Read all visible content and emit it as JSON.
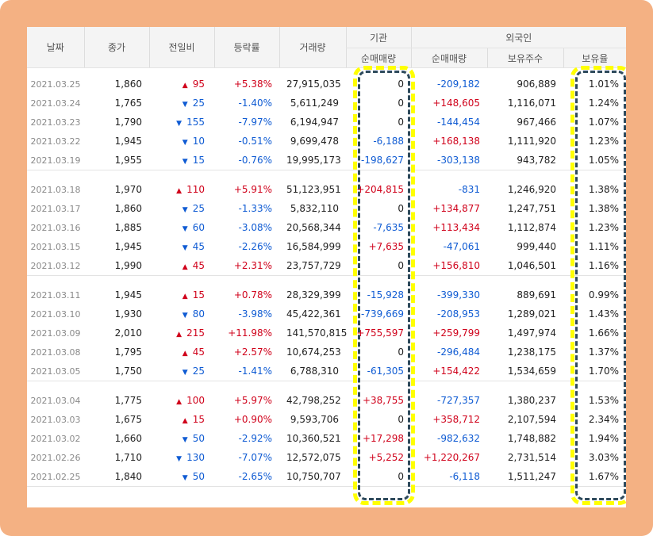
{
  "colors": {
    "frame": "#f4b183",
    "up": "#d0021b",
    "down": "#0f5bd3",
    "highlight": "#ffff00",
    "highlight_dash": "#2e4a5c"
  },
  "headers": {
    "date": "날짜",
    "close": "종가",
    "change": "전일비",
    "rate": "등락률",
    "volume": "거래량",
    "institution": "기관",
    "foreign": "외국인",
    "inst_net": "순매매량",
    "foreign_net": "순매매량",
    "holdings": "보유주수",
    "holding_ratio": "보유율"
  },
  "groups": [
    [
      {
        "date": "2021.03.25",
        "close": "1,860",
        "dir": "up",
        "change": "95",
        "rate": "+5.38%",
        "volume": "27,915,035",
        "inst": "0",
        "foreign": "-209,182",
        "holdings": "906,889",
        "ratio": "1.01%"
      },
      {
        "date": "2021.03.24",
        "close": "1,765",
        "dir": "down",
        "change": "25",
        "rate": "-1.40%",
        "volume": "5,611,249",
        "inst": "0",
        "foreign": "+148,605",
        "holdings": "1,116,071",
        "ratio": "1.24%"
      },
      {
        "date": "2021.03.23",
        "close": "1,790",
        "dir": "down",
        "change": "155",
        "rate": "-7.97%",
        "volume": "6,194,947",
        "inst": "0",
        "foreign": "-144,454",
        "holdings": "967,466",
        "ratio": "1.07%"
      },
      {
        "date": "2021.03.22",
        "close": "1,945",
        "dir": "down",
        "change": "10",
        "rate": "-0.51%",
        "volume": "9,699,478",
        "inst": "-6,188",
        "foreign": "+168,138",
        "holdings": "1,111,920",
        "ratio": "1.23%"
      },
      {
        "date": "2021.03.19",
        "close": "1,955",
        "dir": "down",
        "change": "15",
        "rate": "-0.76%",
        "volume": "19,995,173",
        "inst": "-198,627",
        "foreign": "-303,138",
        "holdings": "943,782",
        "ratio": "1.05%"
      }
    ],
    [
      {
        "date": "2021.03.18",
        "close": "1,970",
        "dir": "up",
        "change": "110",
        "rate": "+5.91%",
        "volume": "51,123,951",
        "inst": "+204,815",
        "foreign": "-831",
        "holdings": "1,246,920",
        "ratio": "1.38%"
      },
      {
        "date": "2021.03.17",
        "close": "1,860",
        "dir": "down",
        "change": "25",
        "rate": "-1.33%",
        "volume": "5,832,110",
        "inst": "0",
        "foreign": "+134,877",
        "holdings": "1,247,751",
        "ratio": "1.38%"
      },
      {
        "date": "2021.03.16",
        "close": "1,885",
        "dir": "down",
        "change": "60",
        "rate": "-3.08%",
        "volume": "20,568,344",
        "inst": "-7,635",
        "foreign": "+113,434",
        "holdings": "1,112,874",
        "ratio": "1.23%"
      },
      {
        "date": "2021.03.15",
        "close": "1,945",
        "dir": "down",
        "change": "45",
        "rate": "-2.26%",
        "volume": "16,584,999",
        "inst": "+7,635",
        "foreign": "-47,061",
        "holdings": "999,440",
        "ratio": "1.11%"
      },
      {
        "date": "2021.03.12",
        "close": "1,990",
        "dir": "up",
        "change": "45",
        "rate": "+2.31%",
        "volume": "23,757,729",
        "inst": "0",
        "foreign": "+156,810",
        "holdings": "1,046,501",
        "ratio": "1.16%"
      }
    ],
    [
      {
        "date": "2021.03.11",
        "close": "1,945",
        "dir": "up",
        "change": "15",
        "rate": "+0.78%",
        "volume": "28,329,399",
        "inst": "-15,928",
        "foreign": "-399,330",
        "holdings": "889,691",
        "ratio": "0.99%"
      },
      {
        "date": "2021.03.10",
        "close": "1,930",
        "dir": "down",
        "change": "80",
        "rate": "-3.98%",
        "volume": "45,422,361",
        "inst": "-739,669",
        "foreign": "-208,953",
        "holdings": "1,289,021",
        "ratio": "1.43%"
      },
      {
        "date": "2021.03.09",
        "close": "2,010",
        "dir": "up",
        "change": "215",
        "rate": "+11.98%",
        "volume": "141,570,815",
        "inst": "+755,597",
        "foreign": "+259,799",
        "holdings": "1,497,974",
        "ratio": "1.66%"
      },
      {
        "date": "2021.03.08",
        "close": "1,795",
        "dir": "up",
        "change": "45",
        "rate": "+2.57%",
        "volume": "10,674,253",
        "inst": "0",
        "foreign": "-296,484",
        "holdings": "1,238,175",
        "ratio": "1.37%"
      },
      {
        "date": "2021.03.05",
        "close": "1,750",
        "dir": "down",
        "change": "25",
        "rate": "-1.41%",
        "volume": "6,788,310",
        "inst": "-61,305",
        "foreign": "+154,422",
        "holdings": "1,534,659",
        "ratio": "1.70%"
      }
    ],
    [
      {
        "date": "2021.03.04",
        "close": "1,775",
        "dir": "up",
        "change": "100",
        "rate": "+5.97%",
        "volume": "42,798,252",
        "inst": "+38,755",
        "foreign": "-727,357",
        "holdings": "1,380,237",
        "ratio": "1.53%"
      },
      {
        "date": "2021.03.03",
        "close": "1,675",
        "dir": "up",
        "change": "15",
        "rate": "+0.90%",
        "volume": "9,593,706",
        "inst": "0",
        "foreign": "+358,712",
        "holdings": "2,107,594",
        "ratio": "2.34%"
      },
      {
        "date": "2021.03.02",
        "close": "1,660",
        "dir": "down",
        "change": "50",
        "rate": "-2.92%",
        "volume": "10,360,521",
        "inst": "+17,298",
        "foreign": "-982,632",
        "holdings": "1,748,882",
        "ratio": "1.94%"
      },
      {
        "date": "2021.02.26",
        "close": "1,710",
        "dir": "down",
        "change": "130",
        "rate": "-7.07%",
        "volume": "12,572,075",
        "inst": "+5,252",
        "foreign": "+1,220,267",
        "holdings": "2,731,514",
        "ratio": "3.03%"
      },
      {
        "date": "2021.02.25",
        "close": "1,840",
        "dir": "down",
        "change": "50",
        "rate": "-2.65%",
        "volume": "10,750,707",
        "inst": "0",
        "foreign": "-6,118",
        "holdings": "1,511,247",
        "ratio": "1.67%"
      }
    ]
  ]
}
